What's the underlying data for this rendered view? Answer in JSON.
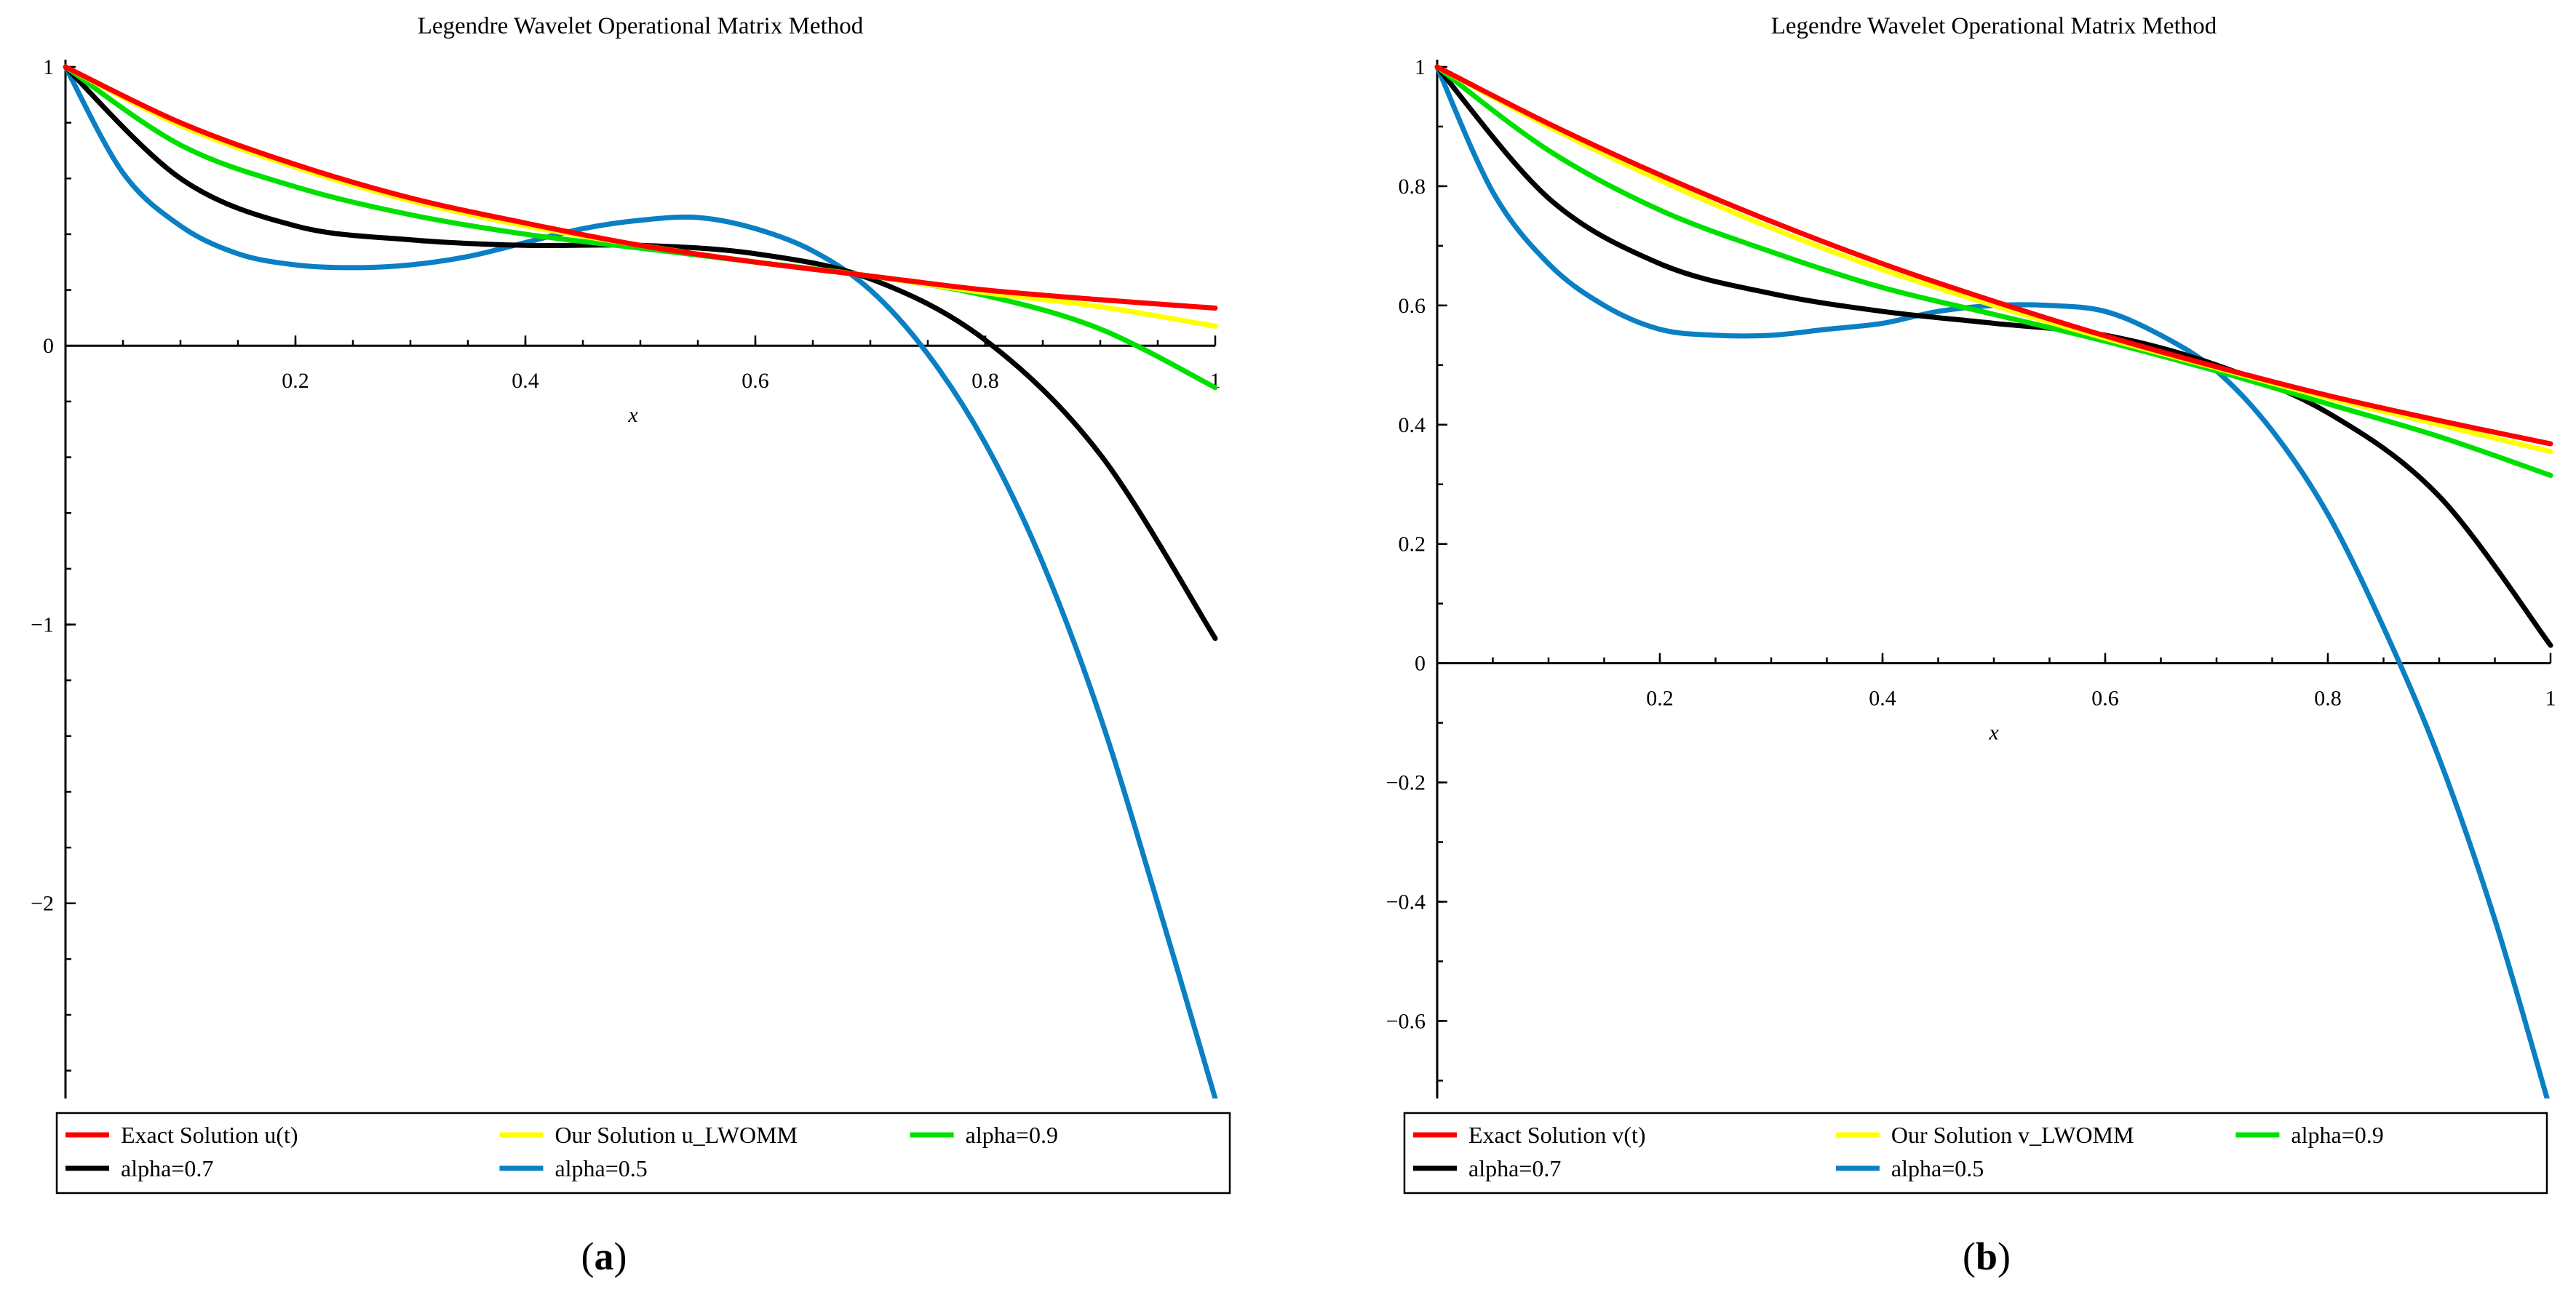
{
  "chart_data": [
    {
      "type": "line",
      "panel": "a",
      "title": "Legendre Wavelet Operational Matrix Method",
      "xlabel": "x",
      "ylabel": "",
      "xlim": [
        0,
        1
      ],
      "ylim": [
        -2.7,
        1
      ],
      "x_ticks": [
        "0.2",
        "0.4",
        "0.6",
        "0.8",
        "1"
      ],
      "y_ticks": [
        "1",
        "0",
        "−1",
        "−2"
      ],
      "y_tick_values": [
        1,
        0,
        -1,
        -2
      ],
      "x_tick_values": [
        0.2,
        0.4,
        0.6,
        0.8,
        1
      ],
      "series": [
        {
          "name": "Exact Solution u(t)",
          "color": "#ff0000",
          "x": [
            0,
            0.1,
            0.2,
            0.3,
            0.4,
            0.5,
            0.6,
            0.7,
            0.8,
            0.9,
            1.0
          ],
          "values": [
            1.0,
            0.8,
            0.65,
            0.53,
            0.44,
            0.36,
            0.3,
            0.25,
            0.2,
            0.165,
            0.135
          ]
        },
        {
          "name": "Our Solution u_LWOMM",
          "color": "#ffff00",
          "x": [
            0,
            0.1,
            0.2,
            0.3,
            0.4,
            0.5,
            0.6,
            0.7,
            0.8,
            0.9,
            1.0
          ],
          "values": [
            1.0,
            0.79,
            0.64,
            0.52,
            0.43,
            0.36,
            0.3,
            0.25,
            0.19,
            0.14,
            0.07
          ]
        },
        {
          "name": "alpha=0.9",
          "color": "#00e000",
          "x": [
            0,
            0.1,
            0.2,
            0.3,
            0.4,
            0.5,
            0.6,
            0.7,
            0.8,
            0.9,
            1.0
          ],
          "values": [
            1.0,
            0.72,
            0.57,
            0.47,
            0.4,
            0.35,
            0.3,
            0.25,
            0.18,
            0.06,
            -0.15
          ]
        },
        {
          "name": "alpha=0.7",
          "color": "#000000",
          "x": [
            0,
            0.1,
            0.2,
            0.3,
            0.4,
            0.5,
            0.6,
            0.7,
            0.8,
            0.9,
            1.0
          ],
          "values": [
            1.0,
            0.6,
            0.43,
            0.38,
            0.36,
            0.36,
            0.33,
            0.24,
            0.02,
            -0.39,
            -1.05
          ]
        },
        {
          "name": "alpha=0.5",
          "color": "#0a7fc4",
          "x": [
            0,
            0.05,
            0.1,
            0.15,
            0.2,
            0.25,
            0.3,
            0.35,
            0.4,
            0.45,
            0.5,
            0.55,
            0.6,
            0.65,
            0.7,
            0.75,
            0.8,
            0.85,
            0.9,
            0.95,
            1.0
          ],
          "values": [
            1.0,
            0.62,
            0.43,
            0.33,
            0.29,
            0.28,
            0.29,
            0.32,
            0.37,
            0.42,
            0.45,
            0.46,
            0.42,
            0.34,
            0.2,
            -0.03,
            -0.35,
            -0.78,
            -1.33,
            -2.0,
            -2.7
          ]
        }
      ]
    },
    {
      "type": "line",
      "panel": "b",
      "title": "Legendre Wavelet Operational Matrix Method",
      "xlabel": "x",
      "ylabel": "",
      "xlim": [
        0,
        1
      ],
      "ylim": [
        -0.73,
        1
      ],
      "x_ticks": [
        "0.2",
        "0.4",
        "0.6",
        "0.8",
        "1"
      ],
      "y_ticks": [
        "1",
        "0.8",
        "0.6",
        "0.4",
        "0.2",
        "0",
        "−0.2",
        "−0.4",
        "−0.6"
      ],
      "y_tick_values": [
        1,
        0.8,
        0.6,
        0.4,
        0.2,
        0,
        -0.2,
        -0.4,
        -0.6
      ],
      "x_tick_values": [
        0.2,
        0.4,
        0.6,
        0.8,
        1
      ],
      "series": [
        {
          "name": "Exact Solution v(t)",
          "color": "#ff0000",
          "x": [
            0,
            0.1,
            0.2,
            0.3,
            0.4,
            0.5,
            0.6,
            0.7,
            0.8,
            0.9,
            1.0
          ],
          "values": [
            1.0,
            0.905,
            0.819,
            0.741,
            0.67,
            0.607,
            0.549,
            0.497,
            0.449,
            0.407,
            0.368
          ]
        },
        {
          "name": "Our Solution v_LWOMM",
          "color": "#ffff00",
          "x": [
            0,
            0.1,
            0.2,
            0.3,
            0.4,
            0.5,
            0.6,
            0.7,
            0.8,
            0.9,
            1.0
          ],
          "values": [
            1.0,
            0.9,
            0.81,
            0.73,
            0.66,
            0.6,
            0.545,
            0.495,
            0.445,
            0.4,
            0.355
          ]
        },
        {
          "name": "alpha=0.9",
          "color": "#00e000",
          "x": [
            0,
            0.1,
            0.2,
            0.3,
            0.4,
            0.5,
            0.6,
            0.7,
            0.8,
            0.9,
            1.0
          ],
          "values": [
            1.0,
            0.86,
            0.76,
            0.69,
            0.63,
            0.585,
            0.54,
            0.49,
            0.435,
            0.38,
            0.315
          ]
        },
        {
          "name": "alpha=0.7",
          "color": "#000000",
          "x": [
            0,
            0.1,
            0.2,
            0.3,
            0.4,
            0.5,
            0.6,
            0.7,
            0.8,
            0.9,
            1.0
          ],
          "values": [
            1.0,
            0.78,
            0.67,
            0.62,
            0.59,
            0.57,
            0.55,
            0.5,
            0.42,
            0.28,
            0.03
          ]
        },
        {
          "name": "alpha=0.5",
          "color": "#0a7fc4",
          "x": [
            0,
            0.05,
            0.1,
            0.15,
            0.2,
            0.25,
            0.3,
            0.35,
            0.4,
            0.45,
            0.5,
            0.55,
            0.6,
            0.65,
            0.7,
            0.75,
            0.8,
            0.85,
            0.9,
            0.95,
            1.0
          ],
          "values": [
            1.0,
            0.79,
            0.67,
            0.6,
            0.56,
            0.55,
            0.55,
            0.56,
            0.57,
            0.59,
            0.6,
            0.6,
            0.59,
            0.55,
            0.49,
            0.39,
            0.25,
            0.06,
            -0.16,
            -0.43,
            -0.75
          ]
        }
      ]
    }
  ],
  "panels": [
    {
      "caption_open": "(",
      "caption_letter": "a",
      "caption_close": ")"
    },
    {
      "caption_open": "(",
      "caption_letter": "b",
      "caption_close": ")"
    }
  ]
}
